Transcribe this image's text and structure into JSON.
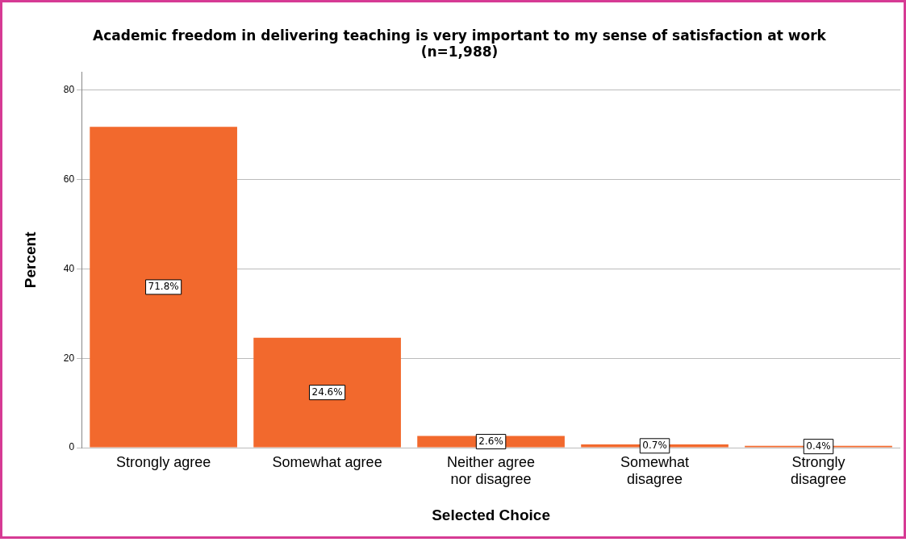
{
  "chart_data": {
    "type": "bar",
    "title": "Academic freedom in delivering teaching is very important to my sense of satisfaction at work",
    "subtitle": "(n=1,988)",
    "xlabel": "Selected Choice",
    "ylabel": "Percent",
    "categories": [
      "Strongly agree",
      "Somewhat agree",
      "Neither agree\nnor disagree",
      "Somewhat\ndisagree",
      "Strongly\ndisagree"
    ],
    "values": [
      71.8,
      24.6,
      2.6,
      0.7,
      0.4
    ],
    "value_labels": [
      "71.8%",
      "24.6%",
      "2.6%",
      "0.7%",
      "0.4%"
    ],
    "color": "#f2692d",
    "ylim": [
      0,
      84
    ],
    "yticks": [
      0,
      20,
      40,
      60,
      80
    ],
    "grid": "y",
    "legend": false
  }
}
